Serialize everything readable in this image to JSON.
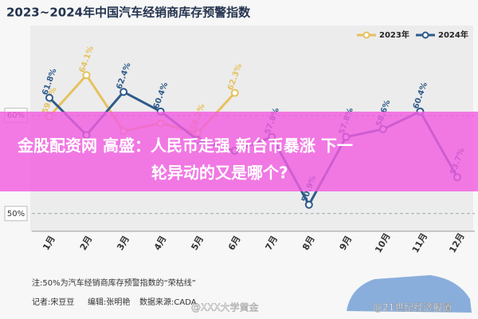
{
  "chart_data": {
    "type": "line",
    "title": "2023~2024年中国汽车经销商库存预警指数",
    "categories": [
      "1月",
      "2月",
      "3月",
      "4月",
      "5月",
      "6月",
      "7月",
      "8月",
      "9月",
      "10月",
      "11月",
      "12月"
    ],
    "series": [
      {
        "name": "2023年",
        "color": "#e6c25e",
        "values": [
          59.9,
          64.1,
          58.4,
          59.2,
          58.2,
          62.3,
          null,
          null,
          null,
          null,
          null,
          null
        ],
        "value_labels": [
          "59.9%",
          "64.1%",
          null,
          null,
          "58.2%",
          "62.3%",
          null,
          null,
          null,
          null,
          null,
          null
        ]
      },
      {
        "name": "2024年",
        "color": "#2f5b8a",
        "values": [
          61.8,
          58.0,
          62.4,
          60.4,
          57.5,
          56.4,
          57.8,
          50.9,
          57.8,
          58.6,
          60.4,
          53.7
        ],
        "value_labels": [
          "61.8%",
          null,
          "62.4%",
          "60.4%",
          null,
          null,
          "57.8%",
          "50.9%",
          "57.8%",
          "58.6%",
          "60.4%",
          "53.7%"
        ]
      }
    ],
    "ylim": [
      48.6,
      67.7
    ],
    "yticks": [
      {
        "value": 50,
        "label": "50%"
      },
      {
        "value": 60,
        "label": "60%"
      }
    ],
    "legend": "top-right",
    "banner": [
      "金股配资网 高盛：人民币走强 新台币暴涨 下一",
      "轮异动的又是哪个?"
    ],
    "footer": {
      "note": "注:50%为汽车经销商库存预警指数的“荣枯线”",
      "reporter": "记者:宋豆豆",
      "editor": "编辑:张明艳",
      "source": "数据来源:CADA",
      "watermarks": [
        "@XXX大学黄金",
        "@21世纪经济报道"
      ]
    }
  }
}
